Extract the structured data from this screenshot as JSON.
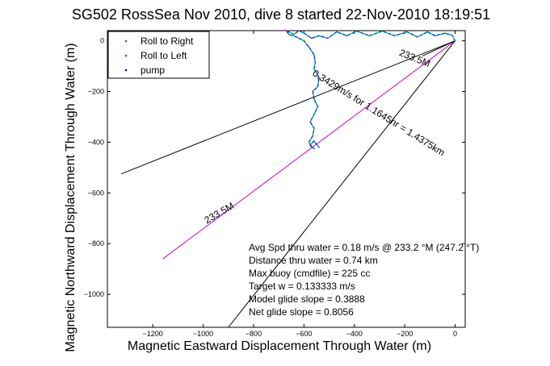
{
  "chart_data": {
    "type": "line",
    "title": "SG502 RossSea Nov 2010, dive 8 started 22-Nov-2010 18:19:51",
    "xlabel": "Magnetic Eastward Displacement Through Water (m)",
    "ylabel": "Magnetic Northward Displacement Through Water (m)",
    "xlim": [
      -1380,
      40
    ],
    "ylim": [
      -1130,
      40
    ],
    "xticks": [
      -1200,
      -1000,
      -800,
      -600,
      -400,
      -200,
      0
    ],
    "yticks": [
      0,
      -200,
      -400,
      -600,
      -800,
      -1000
    ],
    "grid": false,
    "legend_position": "top-left",
    "legend": [
      "Roll to Right",
      "Roll to Left",
      "pump"
    ],
    "colors": {
      "roll_right": "#00a000",
      "roll_left": "#cc00cc",
      "pump": "#0000cc",
      "track": "#00b0b0",
      "heading_line": "#000000",
      "target_line": "#cc00cc"
    },
    "track": [
      [
        0,
        0
      ],
      [
        -12,
        22
      ],
      [
        -40,
        30
      ],
      [
        -80,
        20
      ],
      [
        -110,
        35
      ],
      [
        -150,
        15
      ],
      [
        -190,
        35
      ],
      [
        -240,
        20
      ],
      [
        -290,
        38
      ],
      [
        -340,
        20
      ],
      [
        -390,
        38
      ],
      [
        -430,
        20
      ],
      [
        -470,
        35
      ],
      [
        -505,
        10
      ],
      [
        -540,
        20
      ],
      [
        -570,
        10
      ],
      [
        -600,
        30
      ],
      [
        -620,
        40
      ],
      [
        -640,
        25
      ],
      [
        -670,
        40
      ],
      [
        -660,
        25
      ],
      [
        -630,
        15
      ],
      [
        -600,
        0
      ],
      [
        -580,
        -25
      ],
      [
        -560,
        -55
      ],
      [
        -555,
        -85
      ],
      [
        -560,
        -110
      ],
      [
        -540,
        -145
      ],
      [
        -545,
        -180
      ],
      [
        -565,
        -200
      ],
      [
        -560,
        -230
      ],
      [
        -545,
        -260
      ],
      [
        -560,
        -290
      ],
      [
        -575,
        -320
      ],
      [
        -560,
        -345
      ],
      [
        -565,
        -375
      ],
      [
        -580,
        -400
      ],
      [
        -570,
        -420
      ],
      [
        -560,
        -425
      ],
      [
        -575,
        -410
      ],
      [
        -560,
        -395
      ],
      [
        -540,
        -420
      ]
    ],
    "lines": [
      {
        "label": "233.5M",
        "from": [
          0,
          0
        ],
        "to": [
          -130,
          -60
        ]
      },
      {
        "label": "0.3429m/s for 1.1645hr = 1.4375km",
        "from": [
          0,
          0
        ],
        "to": [
          -1160,
          -860
        ]
      },
      {
        "label": "233.5M",
        "from": [
          0,
          0
        ],
        "to": [
          -1325,
          -525
        ]
      },
      {
        "label": "",
        "from": [
          0,
          0
        ],
        "to": [
          -900,
          -1130
        ]
      }
    ],
    "line_labels": [
      {
        "text": "233.5M",
        "at": [
          -165,
          -80
        ],
        "angle_deg": 22
      },
      {
        "text": "0.3429m/s for 1.1645hr = 1.4375km",
        "at": [
          -310,
          -295
        ],
        "angle_deg": 32
      },
      {
        "text": "233.5M",
        "at": [
          -930,
          -690
        ],
        "angle_deg": -30
      }
    ],
    "annotations": [
      "Avg Spd thru water =  0.18 m/s @ 233.2   °M (247.2 °T)",
      "Distance thru water =  0.74 km",
      "Max buoy (cmdfile) = 225 cc",
      "Target w = 0.133333 m/s",
      "Model glide slope = 0.3888",
      "Net glide slope = 0.8056"
    ]
  }
}
